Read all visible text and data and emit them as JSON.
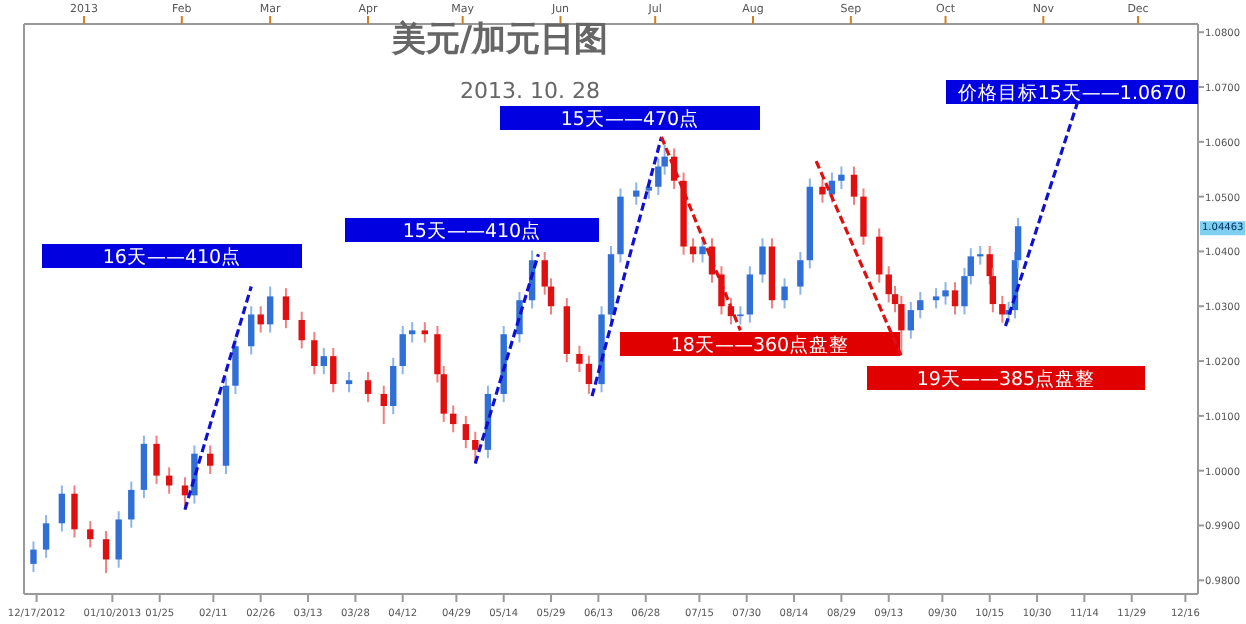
{
  "chart_data": {
    "type": "candlestick",
    "title": "美元/加元日图",
    "subtitle": "2013. 10. 28",
    "x": [
      "2012-12-16",
      "2012-12-20",
      "2012-12-25",
      "2012-12-29",
      "2013-01-03",
      "2013-01-08",
      "2013-01-12",
      "2013-01-16",
      "2013-01-20",
      "2013-01-24",
      "2013-01-28",
      "2013-02-02",
      "2013-02-05",
      "2013-02-10",
      "2013-02-15",
      "2013-02-18",
      "2013-02-23",
      "2013-02-26",
      "2013-03-01",
      "2013-03-06",
      "2013-03-11",
      "2013-03-15",
      "2013-03-18",
      "2013-03-21",
      "2013-03-26",
      "2013-04-01",
      "2013-04-06",
      "2013-04-09",
      "2013-04-12",
      "2013-04-15",
      "2013-04-19",
      "2013-04-23",
      "2013-04-25",
      "2013-04-28",
      "2013-05-02",
      "2013-05-05",
      "2013-05-09",
      "2013-05-14",
      "2013-05-19",
      "2013-05-23",
      "2013-05-27",
      "2013-05-29",
      "2013-06-03",
      "2013-06-07",
      "2013-06-10",
      "2013-06-14",
      "2013-06-17",
      "2013-06-20",
      "2013-06-25",
      "2013-06-29",
      "2013-07-02",
      "2013-07-04",
      "2013-07-07",
      "2013-07-10",
      "2013-07-13",
      "2013-07-16",
      "2013-07-19",
      "2013-07-22",
      "2013-07-25",
      "2013-07-28",
      "2013-07-31",
      "2013-08-04",
      "2013-08-07",
      "2013-08-11",
      "2013-08-16",
      "2013-08-19",
      "2013-08-23",
      "2013-08-26",
      "2013-08-29",
      "2013-09-02",
      "2013-09-05",
      "2013-09-10",
      "2013-09-13",
      "2013-09-15",
      "2013-09-17",
      "2013-09-20",
      "2013-09-23",
      "2013-09-28",
      "2013-10-01",
      "2013-10-04",
      "2013-10-07",
      "2013-10-09",
      "2013-10-12",
      "2013-10-15",
      "2013-10-16",
      "2013-10-19",
      "2013-10-21",
      "2013-10-23",
      "2013-10-24"
    ],
    "ohlc": [
      [
        0.983,
        0.9871,
        0.9815,
        0.9856
      ],
      [
        0.9856,
        0.9919,
        0.9841,
        0.9904
      ],
      [
        0.9904,
        0.9973,
        0.9889,
        0.9958
      ],
      [
        0.9958,
        0.9973,
        0.9878,
        0.9893
      ],
      [
        0.9893,
        0.9908,
        0.986,
        0.9875
      ],
      [
        0.9875,
        0.989,
        0.9813,
        0.9838
      ],
      [
        0.9838,
        0.9926,
        0.9823,
        0.9911
      ],
      [
        0.9911,
        0.998,
        0.9896,
        0.9965
      ],
      [
        0.9965,
        1.0064,
        0.995,
        1.0049
      ],
      [
        1.0049,
        1.0064,
        0.9976,
        0.9991
      ],
      [
        0.9991,
        1.0006,
        0.9958,
        0.9973
      ],
      [
        0.9973,
        0.9988,
        0.9929,
        0.9955
      ],
      [
        0.9955,
        1.0046,
        0.994,
        1.0031
      ],
      [
        1.0031,
        1.0046,
        0.9994,
        1.0009
      ],
      [
        1.0009,
        1.017,
        0.9994,
        1.0155
      ],
      [
        1.0155,
        1.0242,
        1.014,
        1.0227
      ],
      [
        1.0227,
        1.03,
        1.0212,
        1.0285
      ],
      [
        1.0285,
        1.03,
        1.0252,
        1.0267
      ],
      [
        1.0267,
        1.0336,
        1.0252,
        1.0318
      ],
      [
        1.0318,
        1.0333,
        1.026,
        1.0275
      ],
      [
        1.0275,
        1.029,
        1.0223,
        1.0238
      ],
      [
        1.0238,
        1.0253,
        1.0176,
        1.0191
      ],
      [
        1.0191,
        1.0224,
        1.0176,
        1.0209
      ],
      [
        1.0209,
        1.0224,
        1.0143,
        1.0158
      ],
      [
        1.0158,
        1.018,
        1.0143,
        1.0165
      ],
      [
        1.0165,
        1.018,
        1.0125,
        1.014
      ],
      [
        1.014,
        1.0155,
        1.0085,
        1.0118
      ],
      [
        1.0118,
        1.0206,
        1.0103,
        1.0191
      ],
      [
        1.0191,
        1.0264,
        1.0176,
        1.0249
      ],
      [
        1.0249,
        1.0271,
        1.0234,
        1.0256
      ],
      [
        1.0256,
        1.0271,
        1.0234,
        1.0249
      ],
      [
        1.0249,
        1.0264,
        1.0161,
        1.0176
      ],
      [
        1.0176,
        1.0191,
        1.0089,
        1.0104
      ],
      [
        1.0104,
        1.0119,
        1.007,
        1.0085
      ],
      [
        1.0085,
        1.01,
        1.0041,
        1.0056
      ],
      [
        1.0056,
        1.0071,
        1.0013,
        1.0038
      ],
      [
        1.0038,
        1.0155,
        1.0023,
        1.014
      ],
      [
        1.014,
        1.0264,
        1.0125,
        1.0249
      ],
      [
        1.0249,
        1.0326,
        1.0234,
        1.0311
      ],
      [
        1.0311,
        1.0402,
        1.0296,
        1.0384
      ],
      [
        1.0384,
        1.0399,
        1.0321,
        1.0336
      ],
      [
        1.0336,
        1.0351,
        1.0285,
        1.03
      ],
      [
        1.03,
        1.0315,
        1.0198,
        1.0213
      ],
      [
        1.0213,
        1.0228,
        1.018,
        1.0195
      ],
      [
        1.0195,
        1.021,
        1.014,
        1.0158
      ],
      [
        1.0158,
        1.03,
        1.0143,
        1.0285
      ],
      [
        1.0285,
        1.041,
        1.027,
        1.0395
      ],
      [
        1.0395,
        1.0515,
        1.038,
        1.05
      ],
      [
        1.05,
        1.0526,
        1.0485,
        1.0511
      ],
      [
        1.0511,
        1.0533,
        1.0496,
        1.0518
      ],
      [
        1.0518,
        1.057,
        1.0503,
        1.0555
      ],
      [
        1.0555,
        1.0595,
        1.054,
        1.0573
      ],
      [
        1.0573,
        1.0588,
        1.0514,
        1.0529
      ],
      [
        1.0529,
        1.0544,
        1.0394,
        1.0409
      ],
      [
        1.0409,
        1.0424,
        1.038,
        1.0395
      ],
      [
        1.0395,
        1.0424,
        1.038,
        1.0409
      ],
      [
        1.0409,
        1.0424,
        1.0343,
        1.0358
      ],
      [
        1.0358,
        1.0373,
        1.0285,
        1.03
      ],
      [
        1.03,
        1.0315,
        1.0267,
        1.0282
      ],
      [
        1.0282,
        1.03,
        1.0267,
        1.0285
      ],
      [
        1.0285,
        1.0373,
        1.027,
        1.0358
      ],
      [
        1.0358,
        1.0424,
        1.0343,
        1.0409
      ],
      [
        1.0409,
        1.0424,
        1.0296,
        1.0311
      ],
      [
        1.0311,
        1.0351,
        1.0296,
        1.0336
      ],
      [
        1.0336,
        1.0399,
        1.0321,
        1.0384
      ],
      [
        1.0384,
        1.0533,
        1.0369,
        1.0518
      ],
      [
        1.0518,
        1.0533,
        1.0489,
        1.0504
      ],
      [
        1.0504,
        1.0544,
        1.0489,
        1.0529
      ],
      [
        1.0529,
        1.0555,
        1.0514,
        1.054
      ],
      [
        1.054,
        1.0555,
        1.0485,
        1.05
      ],
      [
        1.05,
        1.0515,
        1.0412,
        1.0427
      ],
      [
        1.0427,
        1.0442,
        1.0343,
        1.0358
      ],
      [
        1.0358,
        1.0373,
        1.0307,
        1.0322
      ],
      [
        1.0322,
        1.0337,
        1.0289,
        1.0304
      ],
      [
        1.0304,
        1.0319,
        1.0213,
        1.0256
      ],
      [
        1.0256,
        1.0308,
        1.0241,
        1.0293
      ],
      [
        1.0293,
        1.0326,
        1.0278,
        1.0311
      ],
      [
        1.0311,
        1.0333,
        1.0296,
        1.0318
      ],
      [
        1.0318,
        1.0344,
        1.0303,
        1.0329
      ],
      [
        1.0329,
        1.0344,
        1.0285,
        1.03
      ],
      [
        1.03,
        1.037,
        1.0285,
        1.0355
      ],
      [
        1.0355,
        1.0406,
        1.034,
        1.0391
      ],
      [
        1.0391,
        1.041,
        1.0376,
        1.0395
      ],
      [
        1.0395,
        1.041,
        1.034,
        1.0355
      ],
      [
        1.0355,
        1.037,
        1.0289,
        1.0304
      ],
      [
        1.0304,
        1.0319,
        1.027,
        1.0285
      ],
      [
        1.0285,
        1.0308,
        1.027,
        1.0293
      ],
      [
        1.0293,
        1.0399,
        1.0278,
        1.0384
      ],
      [
        1.0384,
        1.0461,
        1.0369,
        1.0446
      ]
    ],
    "series": [
      {
        "type": "line",
        "color": "#1010d0",
        "x": [
          "2013-02-02",
          "2013-02-23"
        ],
        "values": [
          0.9929,
          1.0336
        ]
      },
      {
        "type": "line",
        "color": "#1010d0",
        "x": [
          "2013-05-05",
          "2013-05-25"
        ],
        "values": [
          1.0013,
          1.0395
        ]
      },
      {
        "type": "line",
        "color": "#1010d0",
        "x": [
          "2013-06-11",
          "2013-07-03"
        ],
        "values": [
          1.0136,
          1.0609
        ]
      },
      {
        "type": "line",
        "color": "#e01010",
        "x": [
          "2013-07-03",
          "2013-07-28"
        ],
        "values": [
          1.0609,
          1.0256
        ]
      },
      {
        "type": "line",
        "color": "#e01010",
        "x": [
          "2013-08-21",
          "2013-09-17"
        ],
        "values": [
          1.0565,
          1.0209
        ]
      },
      {
        "type": "line",
        "color": "#1010d0",
        "x": [
          "2013-10-20",
          "2013-11-13"
        ],
        "values": [
          1.0264,
          1.0693
        ]
      }
    ],
    "line_style": "dashed",
    "annotations": [
      "16天——410点",
      "15天——410点",
      "15天——470点",
      "18天——360点盘整",
      "19天——385点盘整",
      "价格目标15天——1.0670",
      "1.04463"
    ],
    "xlim": [
      "2012-12-13",
      "2013-12-20"
    ],
    "xticks": [
      {
        "value": "2012-12-17",
        "label": "12/17/2012"
      },
      {
        "value": "2013-01-10",
        "label": "01/10/2013"
      },
      {
        "value": "2013-01-25",
        "label": "01/25"
      },
      {
        "value": "2013-02-11",
        "label": "02/11"
      },
      {
        "value": "2013-02-26",
        "label": "02/26"
      },
      {
        "value": "2013-03-13",
        "label": "03/13"
      },
      {
        "value": "2013-03-28",
        "label": "03/28"
      },
      {
        "value": "2013-04-12",
        "label": "04/12"
      },
      {
        "value": "2013-04-29",
        "label": "04/29"
      },
      {
        "value": "2013-05-14",
        "label": "05/14"
      },
      {
        "value": "2013-05-29",
        "label": "05/29"
      },
      {
        "value": "2013-06-13",
        "label": "06/13"
      },
      {
        "value": "2013-06-28",
        "label": "06/28"
      },
      {
        "value": "2013-07-15",
        "label": "07/15"
      },
      {
        "value": "2013-07-30",
        "label": "07/30"
      },
      {
        "value": "2013-08-14",
        "label": "08/14"
      },
      {
        "value": "2013-08-29",
        "label": "08/29"
      },
      {
        "value": "2013-09-13",
        "label": "09/13"
      },
      {
        "value": "2013-09-30",
        "label": "09/30"
      },
      {
        "value": "2013-10-15",
        "label": "10/15"
      },
      {
        "value": "2013-10-30",
        "label": "10/30"
      },
      {
        "value": "2013-11-14",
        "label": "11/14"
      },
      {
        "value": "2013-11-29",
        "label": "11/29"
      },
      {
        "value": "2013-12-16",
        "label": "12/16"
      }
    ],
    "x2lim": [
      "2012-12-13",
      "2013-12-20"
    ],
    "x2ticks": [
      {
        "value": "2013-01-01",
        "label": "2013"
      },
      {
        "value": "2013-02-01",
        "label": "Feb"
      },
      {
        "value": "2013-03-01",
        "label": "Mar"
      },
      {
        "value": "2013-04-01",
        "label": "Apr"
      },
      {
        "value": "2013-05-01",
        "label": "May"
      },
      {
        "value": "2013-06-01",
        "label": "Jun"
      },
      {
        "value": "2013-07-01",
        "label": "Jul"
      },
      {
        "value": "2013-08-01",
        "label": "Aug"
      },
      {
        "value": "2013-09-01",
        "label": "Sep"
      },
      {
        "value": "2013-10-01",
        "label": "Oct"
      },
      {
        "value": "2013-11-01",
        "label": "Nov"
      },
      {
        "value": "2013-12-01",
        "label": "Dec"
      }
    ],
    "ylim": [
      0.9775,
      1.0815
    ],
    "yticks": [
      {
        "value": 0.98,
        "label": "0.9800"
      },
      {
        "value": 0.99,
        "label": "0.9900"
      },
      {
        "value": 1.0,
        "label": "1.0000"
      },
      {
        "value": 1.01,
        "label": "1.0100"
      },
      {
        "value": 1.02,
        "label": "1.0200"
      },
      {
        "value": 1.03,
        "label": "1.0300"
      },
      {
        "value": 1.04,
        "label": "1.0400"
      },
      {
        "value": 1.05,
        "label": "1.0500"
      },
      {
        "value": 1.06,
        "label": "1.0600"
      },
      {
        "value": 1.07,
        "label": "1.0700"
      },
      {
        "value": 1.08,
        "label": "1.0800"
      }
    ]
  }
}
